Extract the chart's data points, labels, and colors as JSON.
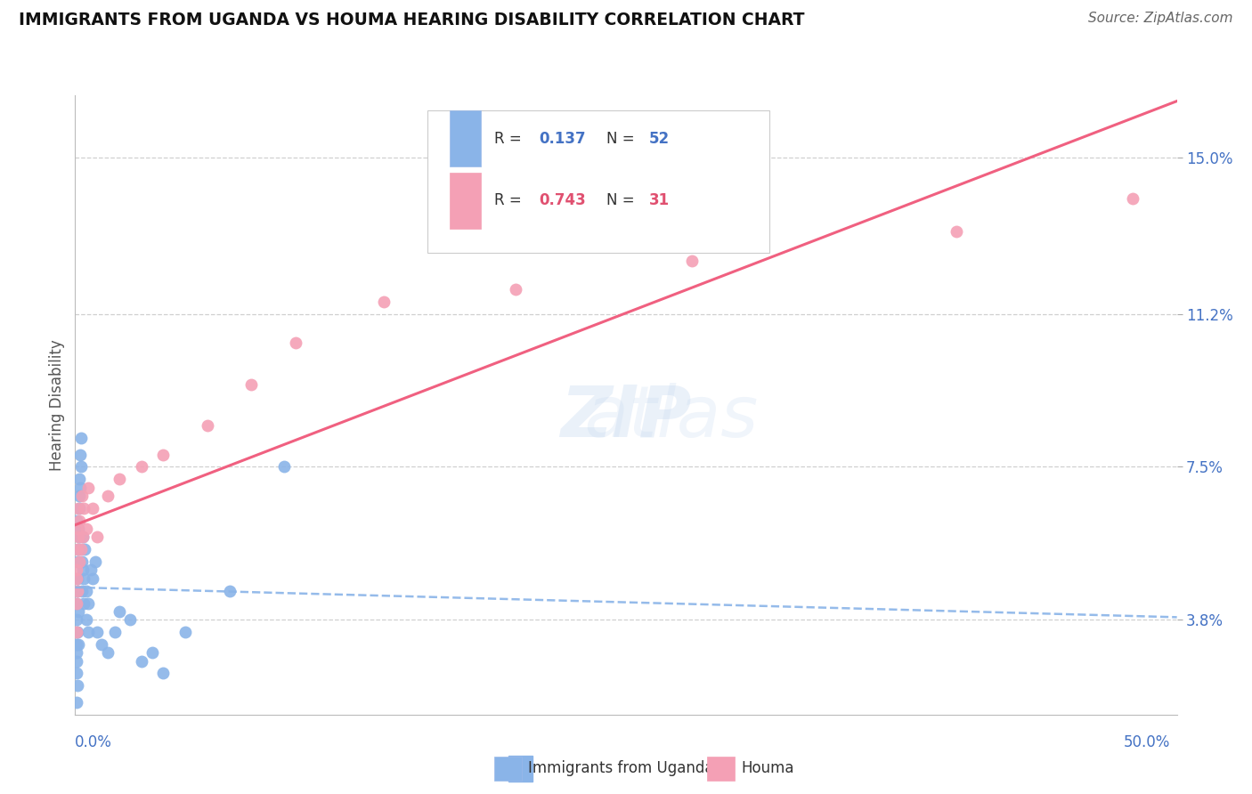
{
  "title": "IMMIGRANTS FROM UGANDA VS HOUMA HEARING DISABILITY CORRELATION CHART",
  "source": "Source: ZipAtlas.com",
  "ylabel": "Hearing Disability",
  "yticks": [
    3.8,
    7.5,
    11.2,
    15.0
  ],
  "xlim": [
    0.0,
    50.0
  ],
  "ylim": [
    1.5,
    16.5
  ],
  "legend_r1": "0.137",
  "legend_n1": "52",
  "legend_r2": "0.743",
  "legend_n2": "31",
  "color_uganda": "#8ab4e8",
  "color_houma": "#f4a0b5",
  "color_houma_line": "#f06080",
  "color_blue": "#4472c4",
  "color_pink": "#e05070",
  "background_color": "#ffffff",
  "grid_color": "#d0d0d0",
  "uganda_x": [
    0.05,
    0.05,
    0.05,
    0.05,
    0.08,
    0.08,
    0.08,
    0.1,
    0.1,
    0.1,
    0.12,
    0.12,
    0.15,
    0.15,
    0.15,
    0.15,
    0.18,
    0.18,
    0.2,
    0.2,
    0.22,
    0.22,
    0.25,
    0.25,
    0.3,
    0.3,
    0.35,
    0.35,
    0.4,
    0.4,
    0.45,
    0.5,
    0.5,
    0.6,
    0.6,
    0.7,
    0.8,
    0.9,
    1.0,
    1.2,
    1.5,
    1.8,
    2.0,
    2.5,
    3.0,
    3.5,
    4.0,
    5.0,
    7.0,
    9.5,
    0.05,
    0.05
  ],
  "uganda_y": [
    3.2,
    3.5,
    2.8,
    2.5,
    3.8,
    4.2,
    3.0,
    4.5,
    3.5,
    2.2,
    5.2,
    4.8,
    6.0,
    5.5,
    4.0,
    3.2,
    6.5,
    5.8,
    7.2,
    6.8,
    7.8,
    7.0,
    8.2,
    7.5,
    5.2,
    4.5,
    5.8,
    5.0,
    4.8,
    4.2,
    5.5,
    4.5,
    3.8,
    4.2,
    3.5,
    5.0,
    4.8,
    5.2,
    3.5,
    3.2,
    3.0,
    3.5,
    4.0,
    3.8,
    2.8,
    3.0,
    2.5,
    3.5,
    4.5,
    7.5,
    1.8,
    6.2
  ],
  "houma_x": [
    0.05,
    0.05,
    0.08,
    0.08,
    0.1,
    0.1,
    0.12,
    0.15,
    0.15,
    0.18,
    0.2,
    0.25,
    0.3,
    0.35,
    0.4,
    0.5,
    0.6,
    0.8,
    1.0,
    1.5,
    2.0,
    3.0,
    4.0,
    6.0,
    8.0,
    10.0,
    14.0,
    20.0,
    28.0,
    40.0,
    48.0
  ],
  "houma_y": [
    4.2,
    3.5,
    5.0,
    4.8,
    5.5,
    4.5,
    6.0,
    5.8,
    6.5,
    5.2,
    6.2,
    5.5,
    6.8,
    5.8,
    6.5,
    6.0,
    7.0,
    6.5,
    5.8,
    6.8,
    7.2,
    7.5,
    7.8,
    8.5,
    9.5,
    10.5,
    11.5,
    11.8,
    12.5,
    13.2,
    14.0
  ]
}
